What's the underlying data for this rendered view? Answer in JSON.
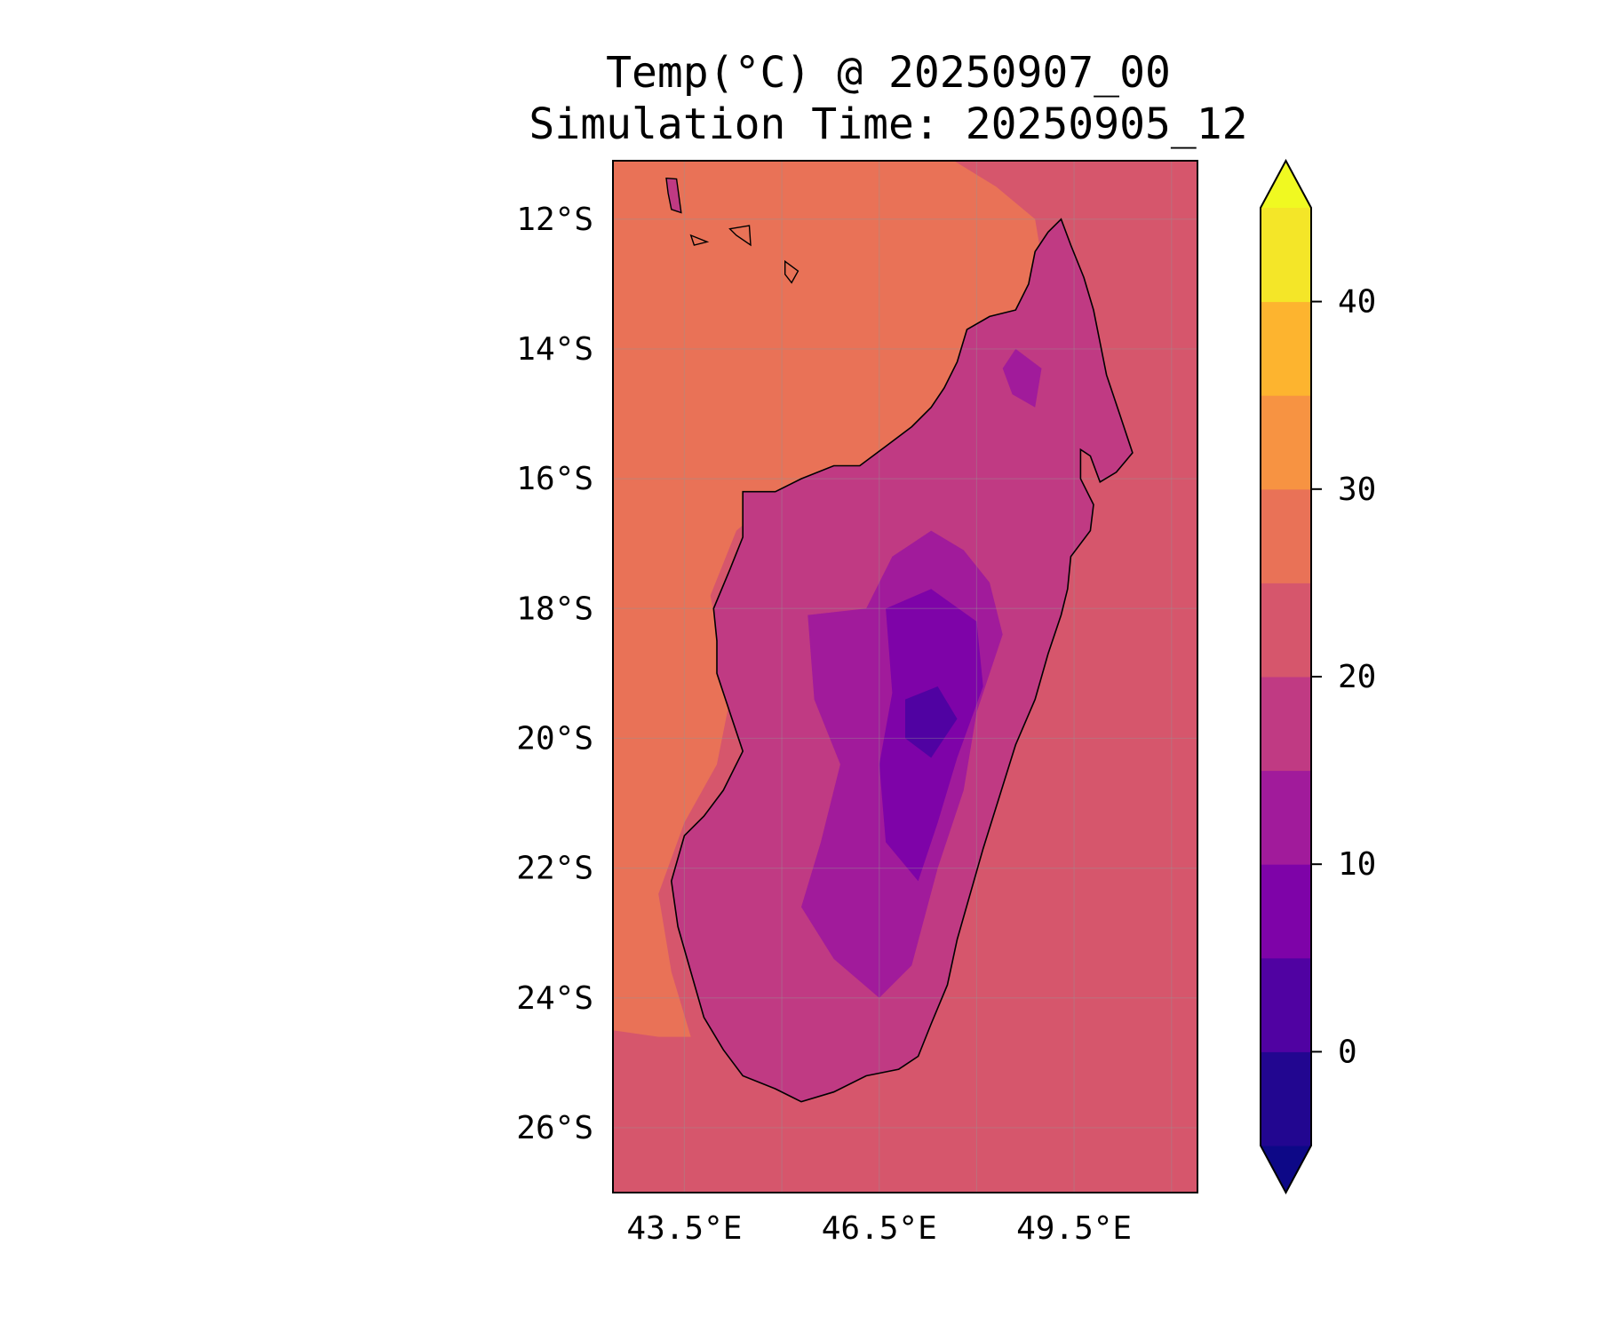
{
  "title": {
    "line1": "Temp(°C) @ 20250907_00",
    "line2": "Simulation Time: 20250905_12"
  },
  "map": {
    "type": "filled-contour-map",
    "variable": "Temp(°C)",
    "valid_time": "20250907_00",
    "simulation_time": "20250905_12",
    "region_label": "Madagascar",
    "lon_range": [
      42.4,
      51.4
    ],
    "lat_range": [
      -27.0,
      -11.1
    ],
    "lon_ticks": [
      43.5,
      46.5,
      49.5
    ],
    "lon_tick_labels": [
      "43.5°E",
      "46.5°E",
      "49.5°E"
    ],
    "lat_ticks": [
      -12,
      -14,
      -16,
      -18,
      -20,
      -22,
      -24,
      -26
    ],
    "lat_tick_labels": [
      "12°S",
      "14°S",
      "16°S",
      "18°S",
      "20°S",
      "22°S",
      "24°S",
      "26°S"
    ],
    "grid": true,
    "coastline_color": "#000000"
  },
  "colorbar": {
    "levels": [
      -5,
      0,
      5,
      10,
      15,
      20,
      25,
      30,
      35,
      40,
      45
    ],
    "colors": [
      "#220690",
      "#5002a2",
      "#7e03a8",
      "#a11b9b",
      "#c03a83",
      "#d6566c",
      "#e97257",
      "#f79342",
      "#fdb42f",
      "#f4e628"
    ],
    "under_color": "#0d0887",
    "over_color": "#f0f921",
    "tick_values": [
      0,
      10,
      20,
      30,
      40
    ],
    "tick_labels": [
      "0",
      "10",
      "20",
      "30",
      "40"
    ],
    "extend": "both"
  },
  "field_colors": {
    "ocean_east_south": "#d6566c",
    "ocean_west_north": "#e97257",
    "land_mid": "#c03a83",
    "land_cool": "#a11b9b",
    "land_cold": "#7e03a8",
    "land_coldest": "#5002a2"
  }
}
